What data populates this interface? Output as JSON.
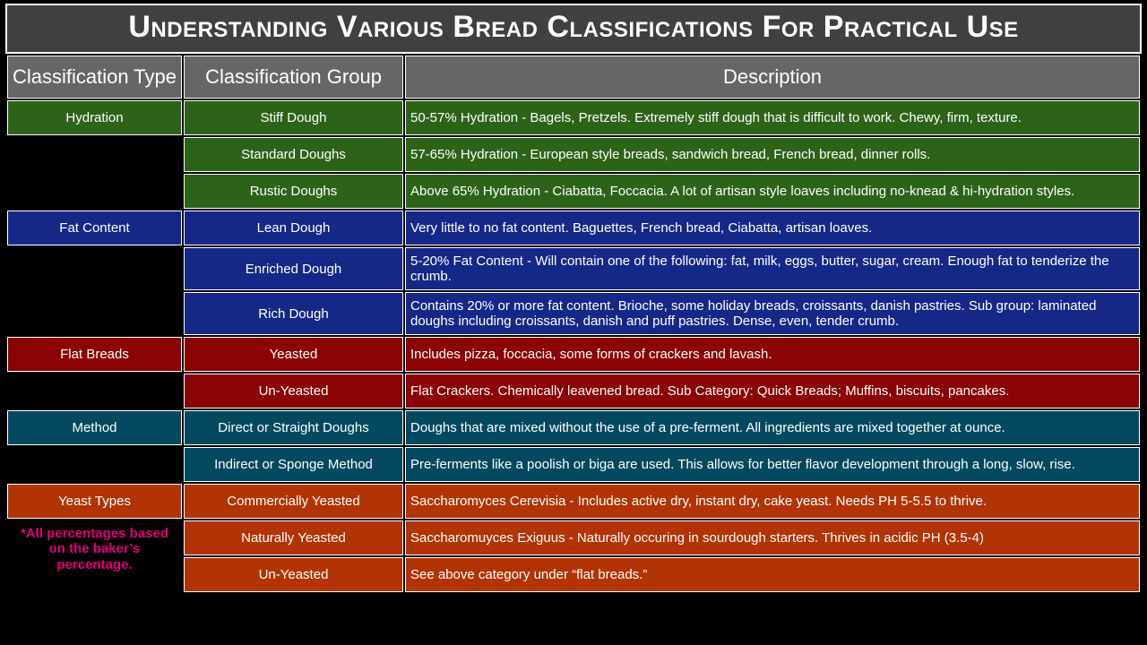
{
  "title": "Understanding Various Bread Classifications For Practical Use",
  "headers": {
    "type": "Classification Type",
    "group": "Classification Group",
    "desc": "Description"
  },
  "colors": {
    "page_bg": "#000000",
    "title_bg": "#404040",
    "header_bg": "#666666",
    "border": "#ffffff",
    "text": "#ffffff",
    "note": "#e6007e",
    "hydration": "#2d6318",
    "fat": "#152888",
    "flat": "#8b0303",
    "method": "#03495f",
    "yeast": "#b23404"
  },
  "sections": {
    "hydration": {
      "type": "Hydration",
      "rows": [
        {
          "group": "Stiff Dough",
          "desc": "50-57% Hydration - Bagels, Pretzels. Extremely stiff dough that is difficult to work. Chewy, firm, texture."
        },
        {
          "group": "Standard Doughs",
          "desc": "57-65% Hydration - European style breads, sandwich bread, French bread, dinner rolls."
        },
        {
          "group": "Rustic Doughs",
          "desc": "Above 65% Hydration - Ciabatta, Foccacia. A lot of artisan style loaves including no-knead & hi-hydration styles."
        }
      ]
    },
    "fat": {
      "type": "Fat Content",
      "rows": [
        {
          "group": "Lean Dough",
          "desc": "Very little to no fat content. Baguettes, French bread, Ciabatta, artisan loaves."
        },
        {
          "group": "Enriched Dough",
          "desc": "5-20% Fat Content - Will contain one of the following: fat, milk, eggs, butter, sugar, cream. Enough fat to tenderize the crumb."
        },
        {
          "group": "Rich Dough",
          "desc": "Contains 20% or more fat content. Brioche, some holiday breads, croissants, danish pastries. Sub group: laminated doughs including croissants, danish and puff pastries. Dense, even, tender crumb."
        }
      ]
    },
    "flat": {
      "type": "Flat Breads",
      "rows": [
        {
          "group": "Yeasted",
          "desc": "Includes pizza, foccacia, some forms of crackers and lavash."
        },
        {
          "group": "Un-Yeasted",
          "desc": "Flat Crackers. Chemically leavened bread. Sub Category: Quick Breads; Muffins, biscuits, pancakes."
        }
      ]
    },
    "method": {
      "type": "Method",
      "rows": [
        {
          "group": "Direct or Straight Doughs",
          "desc": "Doughs that are mixed without the use of a pre-ferment. All ingredients are mixed together at ounce."
        },
        {
          "group": "Indirect or Sponge Method",
          "desc": "Pre-ferments like a poolish or biga are used. This allows for better flavor development through a long, slow, rise."
        }
      ]
    },
    "yeast": {
      "type": "Yeast Types",
      "rows": [
        {
          "group": "Commercially Yeasted",
          "desc": "Saccharomyces Cerevisia - Includes active dry, instant dry, cake yeast. Needs PH 5-5.5 to thrive."
        },
        {
          "group": "Naturally Yeasted",
          "desc": "Saccharomuyces Exiguus - Naturally occuring in sourdough starters. Thrives in acidic PH (3.5-4)"
        },
        {
          "group": "Un-Yeasted",
          "desc": "See above category under “flat breads.”"
        }
      ]
    }
  },
  "footnote": "*All percentages based on the baker’s percentage."
}
